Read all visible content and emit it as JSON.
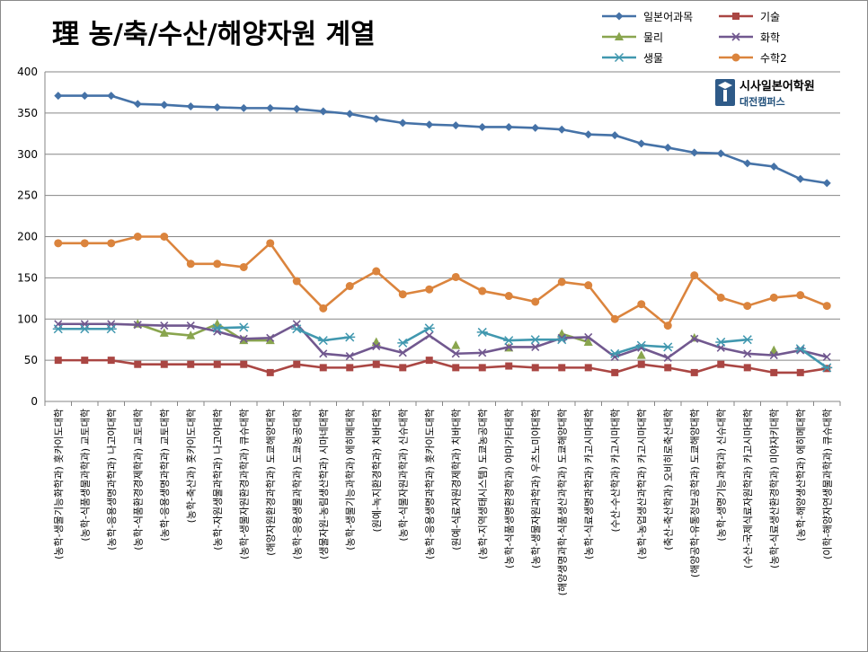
{
  "title": "理  농/축/수산/해양자원 계열",
  "logo": {
    "name": "시사일본어학원",
    "campus": "대전캠퍼스"
  },
  "chart_data": {
    "type": "line",
    "title": "理  농/축/수산/해양자원 계열",
    "xlabel": "",
    "ylabel": "",
    "ylim": [
      0,
      400
    ],
    "yticks": [
      0,
      50,
      100,
      150,
      200,
      250,
      300,
      350,
      400
    ],
    "grid": true,
    "legend_position": "top-right",
    "categories": [
      "(농학-생물기능화학과) 홋카이도대학",
      "(농학-식품생물과학과) 교토대학",
      "(농학-응용생명과학과) 나고야대학",
      "(농학-식품환경경제학과) 교토대학",
      "(농학-응용생명과학과) 교토대학",
      "(농학-축산과) 홋카이도대학",
      "(농학-자원생물과학과) 나고야대학",
      "(농학-생물자원환경과학과) 큐슈대학",
      "(해양자원환경과학과) 도쿄해양대학",
      "(농학-응용생물과학과) 도쿄농공대학",
      "(생물자원-농림생산학과) 시마네대학",
      "(농학-생물기능과학과) 에히메대학",
      "(원예-녹지환경학과) 치바대학",
      "(농학-식물자원과학과) 신슈대학",
      "(농학-응용생명과학과) 홋카이도대학",
      "(원예-식료자원경제학과) 치바대학",
      "(농학-지역생태시스템) 도쿄농공대학",
      "(농학-식품생명환경학과) 야마가타대학",
      "(농학-생물자원과학과) 우츠노미야대학",
      "(해양생명과학-식품생산과학과) 도쿄해양대학",
      "(농학-식료생명과학과) 카고시마대학",
      "(수산-수산학과) 카고시마대학",
      "(농학-농업생산과학과) 카고시마대학",
      "(축산-축산학과) 오비히로축산대학",
      "(해양공학-유통정보공학과) 도쿄해양대학",
      "(농학-생명기능과학과) 신슈대학",
      "(수산-국제식료자원학과) 카고시마대학",
      "(농학-식료생산환경학과) 미야자키대학",
      "(농학-해양생산학과) 에히메대학",
      "(이학-해양자연생물과학과) 큐슈대학"
    ],
    "series": [
      {
        "name": "일본어과목",
        "color": "#4572A7",
        "marker": "diamond",
        "values": [
          371,
          371,
          371,
          361,
          360,
          358,
          357,
          356,
          356,
          355,
          352,
          349,
          343,
          338,
          336,
          335,
          333,
          333,
          332,
          330,
          324,
          323,
          313,
          308,
          302,
          301,
          289,
          285,
          270,
          265
        ]
      },
      {
        "name": "기술",
        "color": "#AA4643",
        "marker": "square",
        "values": [
          50,
          50,
          50,
          45,
          45,
          45,
          45,
          45,
          35,
          45,
          41,
          41,
          45,
          41,
          50,
          41,
          41,
          43,
          41,
          41,
          41,
          35,
          45,
          41,
          35,
          45,
          41,
          35,
          35,
          40
        ]
      },
      {
        "name": "물리",
        "color": "#89A54E",
        "marker": "triangle",
        "values": [
          null,
          null,
          null,
          94,
          83,
          80,
          94,
          74,
          74,
          null,
          null,
          null,
          72,
          null,
          null,
          68,
          null,
          65,
          null,
          82,
          72,
          null,
          56,
          null,
          77,
          null,
          null,
          62,
          null,
          null
        ]
      },
      {
        "name": "화학",
        "color": "#71588F",
        "marker": "x",
        "values": [
          94,
          94,
          94,
          93,
          92,
          92,
          85,
          76,
          77,
          94,
          58,
          55,
          67,
          59,
          80,
          58,
          59,
          66,
          66,
          77,
          78,
          54,
          65,
          53,
          76,
          65,
          58,
          56,
          62,
          54
        ]
      },
      {
        "name": "생물",
        "color": "#4198AF",
        "marker": "asterisk",
        "values": [
          88,
          88,
          88,
          null,
          null,
          null,
          89,
          90,
          null,
          88,
          74,
          78,
          null,
          71,
          89,
          null,
          84,
          74,
          75,
          75,
          null,
          58,
          68,
          66,
          null,
          72,
          75,
          null,
          64,
          41
        ]
      },
      {
        "name": "수학2",
        "color": "#DB843D",
        "marker": "circle",
        "values": [
          192,
          192,
          192,
          200,
          200,
          167,
          167,
          163,
          192,
          146,
          113,
          140,
          158,
          130,
          136,
          151,
          134,
          128,
          121,
          145,
          141,
          100,
          118,
          92,
          153,
          126,
          116,
          126,
          129,
          116
        ]
      }
    ]
  }
}
